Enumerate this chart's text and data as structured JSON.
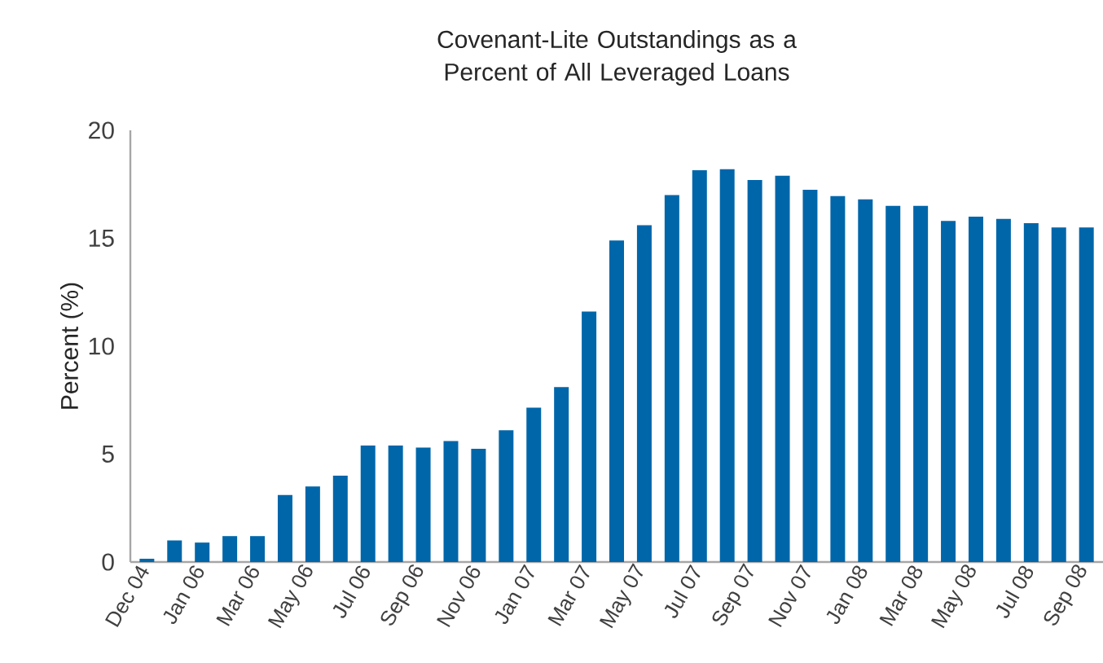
{
  "chart_data": {
    "type": "bar",
    "title": "Covenant-Lite Outstandings as a Percent of All Leveraged Loans",
    "ylabel": "Percent (%)",
    "categories": [
      "Dec 04",
      null,
      "Jan 06",
      null,
      "Mar 06",
      null,
      "May 06",
      null,
      "Jul 06",
      null,
      "Sep 06",
      null,
      "Nov 06",
      null,
      "Jan 07",
      null,
      "Mar 07",
      null,
      "May 07",
      null,
      "Jul 07",
      null,
      "Sep 07",
      null,
      "Nov 07",
      null,
      "Jan 08",
      null,
      "Mar 08",
      null,
      "May 08",
      null,
      "Jul 08",
      null,
      "Sep 08"
    ],
    "values": [
      0.15,
      1.0,
      0.9,
      1.2,
      1.2,
      3.1,
      3.5,
      4.0,
      5.4,
      5.4,
      5.3,
      5.6,
      5.25,
      6.1,
      7.15,
      8.1,
      11.6,
      14.9,
      15.6,
      17.0,
      18.15,
      18.2,
      17.7,
      17.9,
      17.25,
      16.95,
      16.8,
      16.5,
      16.5,
      15.8,
      16.0,
      15.9,
      15.7,
      15.5,
      15.5
    ],
    "color": "#0066aa",
    "ylim": [
      0,
      20
    ],
    "yticks": [
      0,
      5,
      10,
      15,
      20
    ],
    "grid": false
  }
}
